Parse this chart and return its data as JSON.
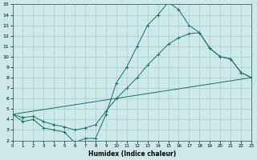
{
  "xlabel": "Humidex (Indice chaleur)",
  "xlim": [
    0,
    23
  ],
  "ylim": [
    2,
    15
  ],
  "bg_color": "#cce8e8",
  "grid_color": "#aacccc",
  "line_color": "#1a7068",
  "line1_x": [
    0,
    1,
    2,
    3,
    4,
    5,
    6,
    7,
    8,
    9,
    10,
    11,
    12,
    13,
    14,
    15,
    16,
    17,
    18,
    19,
    20,
    21,
    22,
    23
  ],
  "line1_y": [
    4.5,
    3.8,
    4.0,
    3.2,
    3.0,
    2.8,
    1.8,
    2.2,
    2.2,
    4.5,
    7.5,
    9.0,
    11.0,
    13.0,
    14.0,
    15.2,
    14.5,
    13.0,
    12.3,
    10.8,
    10.0,
    9.8,
    8.5,
    8.0
  ],
  "line2_x": [
    0,
    1,
    2,
    3,
    4,
    5,
    6,
    7,
    8,
    9,
    10,
    11,
    12,
    13,
    14,
    15,
    16,
    17,
    18,
    19,
    20,
    21,
    22,
    23
  ],
  "line2_y": [
    4.5,
    4.2,
    4.3,
    3.8,
    3.5,
    3.3,
    3.0,
    3.2,
    3.5,
    4.8,
    6.0,
    7.0,
    8.0,
    9.2,
    10.2,
    11.2,
    11.8,
    12.2,
    12.3,
    10.8,
    10.0,
    9.8,
    8.5,
    8.0
  ],
  "line3_x": [
    0,
    23
  ],
  "line3_y": [
    4.5,
    8.0
  ]
}
